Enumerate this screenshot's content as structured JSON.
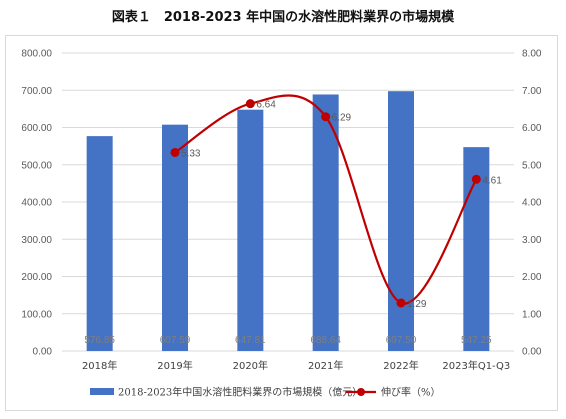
{
  "title": "図表１　2018-2023 年中国の水溶性肥料業界の市場規模",
  "chart_data": {
    "type": "bar+line",
    "categories": [
      "2018年",
      "2019年",
      "2020年",
      "2021年",
      "2022年",
      "2023年Q1-Q3"
    ],
    "series": [
      {
        "name": "2018-2023年中国水溶性肥料業界の市場規模（億元）",
        "type": "bar",
        "axis": "left",
        "color": "#4472c4",
        "values": [
          576.85,
          607.59,
          647.81,
          688.64,
          697.5,
          547.25
        ],
        "labels": [
          "576.85",
          "607.59",
          "647.81",
          "688.64",
          "697.50",
          "547.25"
        ]
      },
      {
        "name": "伸び率（%）",
        "type": "line",
        "axis": "right",
        "color": "#c00000",
        "smooth": true,
        "values": [
          null,
          5.33,
          6.64,
          6.29,
          1.29,
          4.61
        ],
        "labels": [
          "",
          "5.33",
          "6.64",
          "6.29",
          "1.29",
          "4.61"
        ]
      }
    ],
    "y_left": {
      "min": 0,
      "max": 800,
      "ticks": [
        "0.00",
        "100.00",
        "200.00",
        "300.00",
        "400.00",
        "500.00",
        "600.00",
        "700.00",
        "800.00"
      ]
    },
    "y_right": {
      "min": 0,
      "max": 8,
      "ticks": [
        "0.00",
        "1.00",
        "2.00",
        "3.00",
        "4.00",
        "5.00",
        "6.00",
        "7.00",
        "8.00"
      ]
    },
    "grid": true,
    "legend_position": "bottom"
  }
}
